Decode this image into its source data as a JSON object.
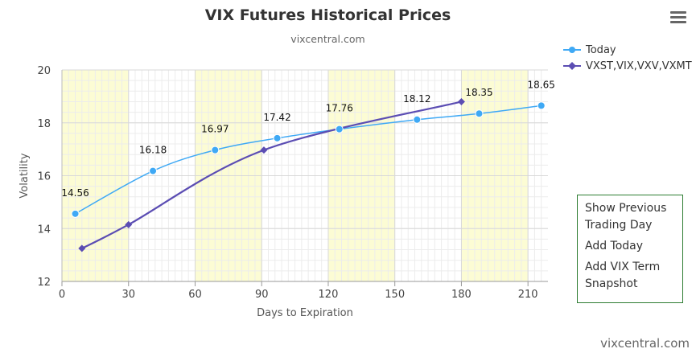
{
  "title": "VIX Futures Historical Prices",
  "subtitle": "vixcentral.com",
  "menu_icon": "hamburger-menu-icon",
  "side_menu": {
    "show_previous_line1": "Show Previous",
    "show_previous_line2": "Trading Day",
    "add_today": "Add Today",
    "add_vix_term_line1": "Add VIX Term",
    "add_vix_term_line2": "Snapshot"
  },
  "credit": "vixcentral.com",
  "colors": {
    "today": "#3fa9f5",
    "vix_term": "#5b4db3",
    "band": "#fcfcd4",
    "menu_border": "#2e7d32"
  },
  "chart_data": {
    "type": "line",
    "title": "VIX Futures Historical Prices",
    "subtitle": "vixcentral.com",
    "xlabel": "Days to Expiration",
    "ylabel": "Volatility",
    "xlim": [
      0,
      219
    ],
    "ylim": [
      12,
      20
    ],
    "x_ticks": [
      0,
      30,
      60,
      90,
      120,
      150,
      180,
      210
    ],
    "y_ticks": [
      12,
      14,
      16,
      18,
      20
    ],
    "grid": true,
    "legend_position": "top-right",
    "bands": [
      [
        0,
        30
      ],
      [
        60,
        90
      ],
      [
        120,
        150
      ],
      [
        180,
        210
      ]
    ],
    "series": [
      {
        "name": "Today",
        "marker": "circle",
        "x": [
          6,
          41,
          69,
          97,
          125,
          160,
          188,
          216
        ],
        "y": [
          14.56,
          16.18,
          16.97,
          17.42,
          17.76,
          18.12,
          18.35,
          18.65
        ],
        "labels": [
          "14.56",
          "16.18",
          "16.97",
          "17.42",
          "17.76",
          "18.12",
          "18.35",
          "18.65"
        ]
      },
      {
        "name": "VXST,VIX,VXV,VXMT",
        "marker": "diamond",
        "x": [
          9,
          30,
          91,
          180
        ],
        "y": [
          13.25,
          14.15,
          16.97,
          18.8
        ]
      }
    ]
  }
}
